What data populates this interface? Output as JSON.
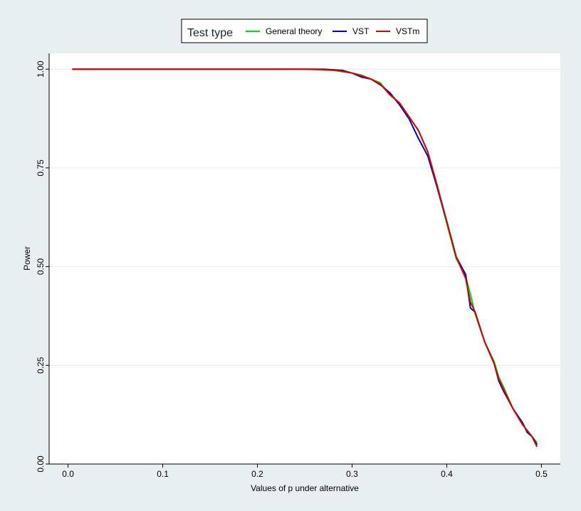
{
  "chart_data": {
    "type": "line",
    "title": "",
    "xlabel": "Values of p under alternative",
    "ylabel": "Power",
    "xlim": [
      -0.02,
      0.52
    ],
    "ylim": [
      0,
      1.04
    ],
    "x_ticks": [
      0.0,
      0.1,
      0.2,
      0.3,
      0.4,
      0.5
    ],
    "x_tick_labels": [
      "0.0",
      "0.1",
      "0.2",
      "0.3",
      "0.4",
      "0.5"
    ],
    "y_ticks": [
      0.0,
      0.25,
      0.5,
      0.75,
      1.0
    ],
    "y_tick_labels": [
      "0.00",
      "0.25",
      "0.50",
      "0.75",
      "1.00"
    ],
    "grid": "horizontal",
    "legend": {
      "title": "Test type",
      "position": "top-center"
    },
    "series": [
      {
        "name": "General theory",
        "color": "#00e000",
        "points": [
          [
            0.005,
            1.0
          ],
          [
            0.25,
            1.0
          ],
          [
            0.28,
            0.997
          ],
          [
            0.3,
            0.99
          ],
          [
            0.31,
            0.985
          ],
          [
            0.32,
            0.975
          ],
          [
            0.33,
            0.965
          ],
          [
            0.34,
            0.935
          ],
          [
            0.35,
            0.915
          ],
          [
            0.36,
            0.88
          ],
          [
            0.37,
            0.845
          ],
          [
            0.38,
            0.79
          ],
          [
            0.39,
            0.7
          ],
          [
            0.4,
            0.61
          ],
          [
            0.41,
            0.52
          ],
          [
            0.42,
            0.475
          ],
          [
            0.425,
            0.43
          ],
          [
            0.43,
            0.38
          ],
          [
            0.44,
            0.31
          ],
          [
            0.45,
            0.26
          ],
          [
            0.455,
            0.22
          ],
          [
            0.46,
            0.195
          ],
          [
            0.47,
            0.14
          ],
          [
            0.48,
            0.1
          ],
          [
            0.49,
            0.07
          ],
          [
            0.495,
            0.055
          ]
        ]
      },
      {
        "name": "VST",
        "color": "#0000c8",
        "points": [
          [
            0.005,
            1.0
          ],
          [
            0.27,
            1.0
          ],
          [
            0.29,
            0.997
          ],
          [
            0.3,
            0.99
          ],
          [
            0.31,
            0.98
          ],
          [
            0.32,
            0.975
          ],
          [
            0.33,
            0.96
          ],
          [
            0.34,
            0.94
          ],
          [
            0.35,
            0.91
          ],
          [
            0.36,
            0.875
          ],
          [
            0.37,
            0.825
          ],
          [
            0.38,
            0.78
          ],
          [
            0.39,
            0.7
          ],
          [
            0.4,
            0.615
          ],
          [
            0.41,
            0.525
          ],
          [
            0.42,
            0.48
          ],
          [
            0.425,
            0.395
          ],
          [
            0.43,
            0.385
          ],
          [
            0.44,
            0.31
          ],
          [
            0.45,
            0.255
          ],
          [
            0.455,
            0.21
          ],
          [
            0.46,
            0.185
          ],
          [
            0.47,
            0.14
          ],
          [
            0.48,
            0.105
          ],
          [
            0.485,
            0.08
          ],
          [
            0.49,
            0.07
          ],
          [
            0.495,
            0.05
          ]
        ]
      },
      {
        "name": "VSTm",
        "color": "#e00000",
        "points": [
          [
            0.005,
            1.0
          ],
          [
            0.26,
            1.0
          ],
          [
            0.285,
            0.997
          ],
          [
            0.3,
            0.99
          ],
          [
            0.31,
            0.983
          ],
          [
            0.32,
            0.975
          ],
          [
            0.33,
            0.962
          ],
          [
            0.34,
            0.935
          ],
          [
            0.35,
            0.915
          ],
          [
            0.36,
            0.88
          ],
          [
            0.37,
            0.845
          ],
          [
            0.38,
            0.79
          ],
          [
            0.39,
            0.705
          ],
          [
            0.4,
            0.615
          ],
          [
            0.41,
            0.525
          ],
          [
            0.42,
            0.47
          ],
          [
            0.425,
            0.41
          ],
          [
            0.43,
            0.385
          ],
          [
            0.44,
            0.31
          ],
          [
            0.45,
            0.255
          ],
          [
            0.455,
            0.215
          ],
          [
            0.46,
            0.19
          ],
          [
            0.47,
            0.14
          ],
          [
            0.48,
            0.1
          ],
          [
            0.49,
            0.07
          ],
          [
            0.495,
            0.045
          ]
        ]
      }
    ]
  }
}
